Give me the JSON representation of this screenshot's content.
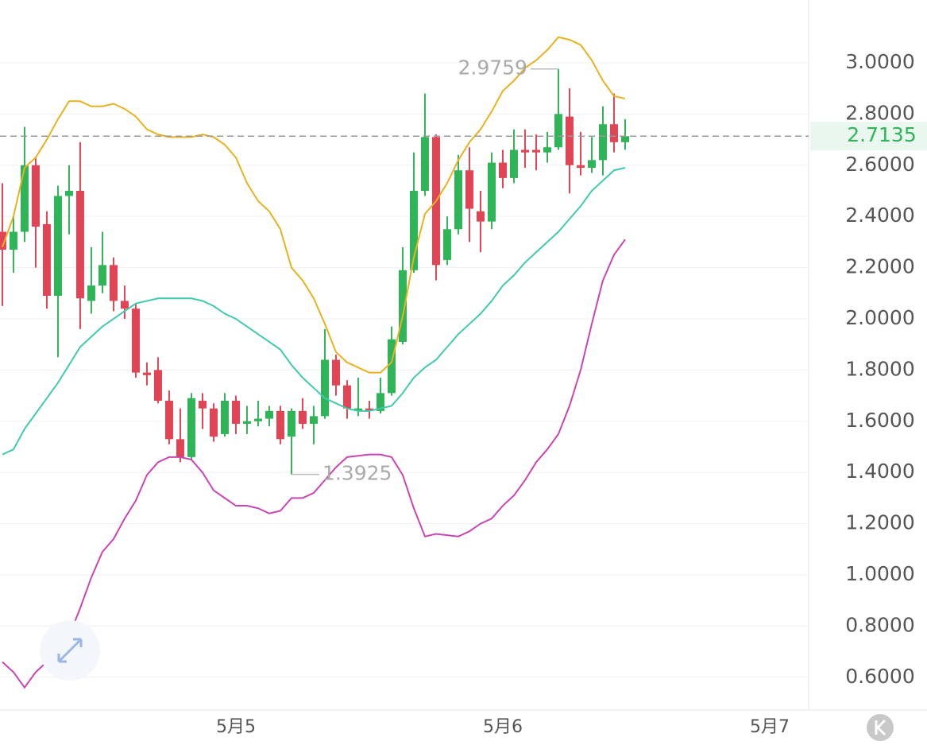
{
  "chart_data": {
    "type": "candlestick",
    "x": [
      0,
      1,
      2,
      3,
      4,
      5,
      6,
      7,
      8,
      9,
      10,
      11,
      12,
      13,
      14,
      15,
      16,
      17,
      18,
      19,
      20,
      21,
      22,
      23,
      24,
      25,
      26,
      27,
      28,
      29,
      30,
      31,
      32,
      33,
      34,
      35,
      36,
      37,
      38,
      39,
      40,
      41,
      42,
      43,
      44,
      45,
      46,
      47,
      48,
      49,
      50,
      51,
      52,
      53,
      54,
      55,
      56
    ],
    "open": [
      2.34,
      2.27,
      2.34,
      2.6,
      2.37,
      2.09,
      2.48,
      2.5,
      2.07,
      2.13,
      2.21,
      2.07,
      2.04,
      1.79,
      1.8,
      1.68,
      1.53,
      1.46,
      1.68,
      1.65,
      1.55,
      1.68,
      1.59,
      1.6,
      1.61,
      1.64,
      1.54,
      1.64,
      1.59,
      1.62,
      1.84,
      1.74,
      1.64,
      1.65,
      1.64,
      1.71,
      1.91,
      2.19,
      2.5,
      2.71,
      2.23,
      2.35,
      2.58,
      2.42,
      2.38,
      2.61,
      2.55,
      2.66,
      2.66,
      2.65,
      2.67,
      2.79,
      2.6,
      2.59,
      2.62,
      2.76,
      2.69
    ],
    "high": [
      2.53,
      2.4,
      2.75,
      2.63,
      2.42,
      2.52,
      2.6,
      2.69,
      2.28,
      2.34,
      2.24,
      2.13,
      2.06,
      1.83,
      1.85,
      1.72,
      1.65,
      1.71,
      1.71,
      1.67,
      1.71,
      1.7,
      1.66,
      1.68,
      1.66,
      1.66,
      1.65,
      1.69,
      1.66,
      1.96,
      1.86,
      1.76,
      1.77,
      1.68,
      1.77,
      1.97,
      2.28,
      2.65,
      2.88,
      2.72,
      2.4,
      2.64,
      2.67,
      2.5,
      2.65,
      2.66,
      2.74,
      2.74,
      2.72,
      2.73,
      2.9759,
      2.9,
      2.73,
      2.71,
      2.83,
      2.88,
      2.78
    ],
    "low": [
      2.05,
      2.18,
      2.3,
      2.2,
      2.04,
      1.85,
      2.33,
      1.96,
      2.02,
      2.1,
      2.03,
      2.0,
      1.77,
      1.74,
      1.67,
      1.51,
      1.44,
      1.45,
      1.57,
      1.52,
      1.54,
      1.55,
      1.55,
      1.58,
      1.58,
      1.51,
      1.3925,
      1.57,
      1.51,
      1.61,
      1.7,
      1.61,
      1.62,
      1.61,
      1.63,
      1.7,
      1.9,
      2.18,
      2.48,
      2.15,
      2.21,
      2.33,
      2.3,
      2.26,
      2.35,
      2.51,
      2.53,
      2.59,
      2.58,
      2.61,
      2.66,
      2.49,
      2.56,
      2.57,
      2.56,
      2.65,
      2.66
    ],
    "close": [
      2.27,
      2.34,
      2.6,
      2.36,
      2.09,
      2.48,
      2.5,
      2.08,
      2.13,
      2.21,
      2.07,
      2.04,
      1.79,
      1.78,
      1.68,
      1.53,
      1.46,
      1.69,
      1.65,
      1.54,
      1.68,
      1.59,
      1.6,
      1.61,
      1.64,
      1.53,
      1.64,
      1.59,
      1.62,
      1.84,
      1.74,
      1.65,
      1.65,
      1.64,
      1.71,
      1.92,
      2.19,
      2.5,
      2.71,
      2.21,
      2.35,
      2.58,
      2.43,
      2.38,
      2.61,
      2.55,
      2.66,
      2.65,
      2.65,
      2.67,
      2.8,
      2.6,
      2.59,
      2.62,
      2.76,
      2.69,
      2.7135
    ],
    "up_color": "#2fb457",
    "down_color": "#e04556",
    "lines": [
      {
        "color": "#e9b21c",
        "values": [
          2.28,
          2.4,
          2.59,
          2.63,
          2.7,
          2.78,
          2.85,
          2.85,
          2.83,
          2.83,
          2.84,
          2.82,
          2.79,
          2.74,
          2.72,
          2.71,
          2.71,
          2.71,
          2.72,
          2.71,
          2.68,
          2.63,
          2.53,
          2.46,
          2.42,
          2.35,
          2.2,
          2.15,
          2.08,
          1.98,
          1.87,
          1.83,
          1.81,
          1.79,
          1.79,
          1.83,
          2.01,
          2.24,
          2.41,
          2.46,
          2.53,
          2.62,
          2.69,
          2.74,
          2.81,
          2.89,
          2.93,
          2.98,
          3.01,
          3.05,
          3.1,
          3.09,
          3.07,
          3.01,
          2.93,
          2.87,
          2.86
        ]
      },
      {
        "color": "#3fcaae",
        "values": [
          1.47,
          1.49,
          1.57,
          1.63,
          1.69,
          1.75,
          1.82,
          1.89,
          1.93,
          1.97,
          2.0,
          2.03,
          2.06,
          2.07,
          2.08,
          2.08,
          2.08,
          2.08,
          2.07,
          2.05,
          2.02,
          2.0,
          1.97,
          1.94,
          1.91,
          1.88,
          1.82,
          1.77,
          1.73,
          1.69,
          1.67,
          1.65,
          1.64,
          1.64,
          1.65,
          1.66,
          1.71,
          1.77,
          1.81,
          1.84,
          1.89,
          1.94,
          1.98,
          2.02,
          2.07,
          2.13,
          2.17,
          2.22,
          2.26,
          2.3,
          2.34,
          2.39,
          2.44,
          2.5,
          2.54,
          2.58,
          2.59
        ]
      },
      {
        "color": "#c945b6",
        "values": [
          0.66,
          0.62,
          0.56,
          0.62,
          0.66,
          0.7,
          0.76,
          0.87,
          0.99,
          1.09,
          1.14,
          1.22,
          1.29,
          1.39,
          1.44,
          1.46,
          1.46,
          1.45,
          1.4,
          1.33,
          1.3,
          1.27,
          1.27,
          1.26,
          1.24,
          1.25,
          1.3,
          1.3,
          1.32,
          1.37,
          1.42,
          1.46,
          1.465,
          1.47,
          1.47,
          1.46,
          1.39,
          1.26,
          1.15,
          1.16,
          1.155,
          1.15,
          1.17,
          1.2,
          1.22,
          1.27,
          1.31,
          1.37,
          1.44,
          1.49,
          1.55,
          1.66,
          1.8,
          1.98,
          2.15,
          2.25,
          2.31
        ]
      }
    ],
    "current_price": 2.7135,
    "annotations": [
      {
        "x": 50,
        "value": 2.9759
      },
      {
        "x": 26,
        "value": 1.3925
      }
    ],
    "xlim": [
      -0.21,
      72.5
    ],
    "ylim": [
      0.472,
      3.2453
    ],
    "xticks": [
      {
        "value": 21,
        "label": "5月5"
      },
      {
        "value": 45,
        "label": "5月6"
      },
      {
        "value": 69,
        "label": "5月7"
      }
    ],
    "yticks": [
      {
        "value": 3.0,
        "label": "3.0000"
      },
      {
        "value": 2.8,
        "label": "2.8000"
      },
      {
        "value": 2.6,
        "label": "2.6000"
      },
      {
        "value": 2.4,
        "label": "2.4000"
      },
      {
        "value": 2.2,
        "label": "2.2000"
      },
      {
        "value": 2.0,
        "label": "2.0000"
      },
      {
        "value": 1.8,
        "label": "1.8000"
      },
      {
        "value": 1.6,
        "label": "1.6000"
      },
      {
        "value": 1.4,
        "label": "1.4000"
      },
      {
        "value": 1.2,
        "label": "1.2000"
      },
      {
        "value": 1.0,
        "label": "1.0000"
      },
      {
        "value": 0.8,
        "label": "0.8000"
      },
      {
        "value": 0.6,
        "label": "0.6000"
      }
    ],
    "grid": true
  }
}
